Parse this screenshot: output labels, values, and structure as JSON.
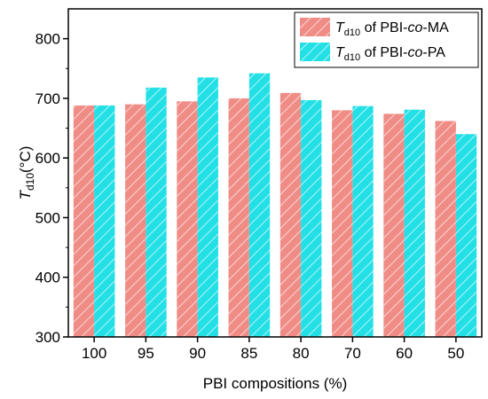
{
  "chart_data": {
    "type": "bar",
    "categories": [
      "100",
      "95",
      "90",
      "85",
      "80",
      "70",
      "60",
      "50"
    ],
    "series": [
      {
        "name_parts": {
          "symbol": "T",
          "subscript": "d10",
          "prefix": " of PBI-",
          "italic": "co",
          "suffix": "-MA"
        },
        "color": "#f08c86",
        "values": [
          688,
          690,
          695,
          700,
          709,
          680,
          674,
          662
        ]
      },
      {
        "name_parts": {
          "symbol": "T",
          "subscript": "d10",
          "prefix": " of PBI-",
          "italic": "co",
          "suffix": "-PA"
        },
        "color": "#22e0e6",
        "values": [
          688,
          718,
          735,
          742,
          697,
          687,
          681,
          640
        ]
      }
    ],
    "xlabel": "PBI compositions (%)",
    "ylabel_parts": {
      "symbol": "T",
      "subscript": "d10",
      "unit": "(°C)"
    },
    "ylim": [
      300,
      850
    ],
    "yticks": [
      300,
      400,
      500,
      600,
      700,
      800
    ],
    "grid": false,
    "legend_position": "top-right",
    "bar_fill": "diagonal-hatch"
  }
}
